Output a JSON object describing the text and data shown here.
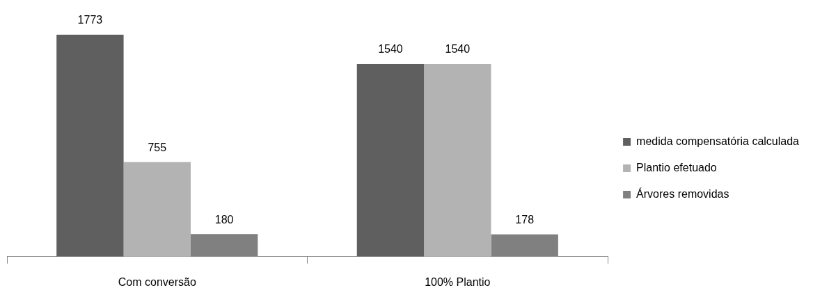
{
  "chart_data": {
    "type": "bar",
    "categories": [
      "Com conversão",
      "100% Plantio"
    ],
    "series": [
      {
        "name": "medida compensatória calculada",
        "color": "#5f5f5f",
        "values": [
          1773,
          1540
        ]
      },
      {
        "name": "Plantio efetuado",
        "color": "#b3b3b3",
        "values": [
          755,
          1540
        ]
      },
      {
        "name": "Árvores removidas",
        "color": "#808080",
        "values": [
          180,
          178
        ]
      }
    ],
    "data_labels": true,
    "legend": "right",
    "grid": false
  }
}
